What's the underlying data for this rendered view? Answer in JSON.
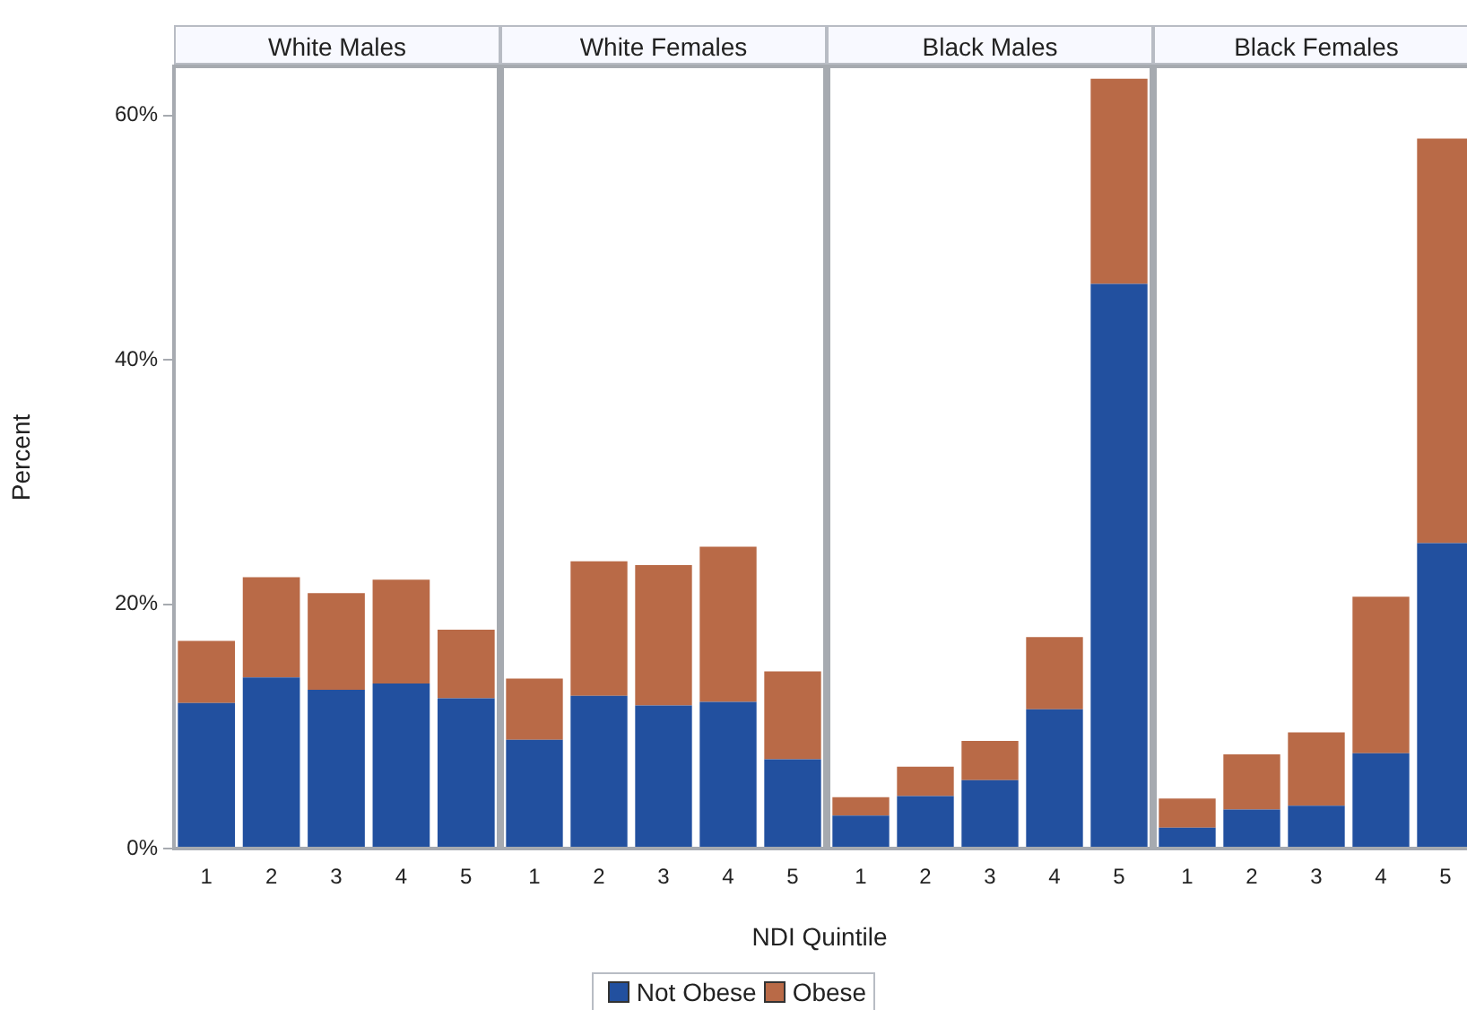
{
  "chart_data": [
    {
      "type": "bar",
      "stacked": true,
      "title": "White Males",
      "ylabel": "Percent",
      "legend": "bottom",
      "categories": [
        "1",
        "2",
        "3",
        "4",
        "5"
      ],
      "series": [
        {
          "name": "Not Obese",
          "color": "#22509f",
          "values": [
            11.9,
            14.0,
            13.0,
            13.5,
            12.3
          ]
        },
        {
          "name": "Obese",
          "color": "#b96a47",
          "values": [
            5.1,
            8.2,
            7.9,
            8.5,
            5.6
          ]
        }
      ],
      "ylim": [
        0,
        64
      ],
      "yticks": [
        {
          "value": 0,
          "label": "0%"
        },
        {
          "value": 20,
          "label": "20%"
        },
        {
          "value": 40,
          "label": "40%"
        },
        {
          "value": 60,
          "label": "60%"
        }
      ]
    },
    {
      "type": "bar",
      "stacked": true,
      "title": "White Females",
      "tick_labels": "x",
      "categories": [
        "1",
        "2",
        "3",
        "4",
        "5"
      ],
      "series": [
        {
          "name": "Not Obese",
          "color": "#22509f",
          "values": [
            8.9,
            12.5,
            11.7,
            12.0,
            7.3
          ]
        },
        {
          "name": "Obese",
          "color": "#b96a47",
          "values": [
            5.0,
            11.0,
            11.5,
            12.7,
            7.2
          ]
        }
      ],
      "ylim": [
        0,
        64
      ],
      "yticks": [
        {
          "value": 0,
          "label": null
        },
        {
          "value": 20,
          "label": null
        },
        {
          "value": 40,
          "label": null
        },
        {
          "value": 60,
          "label": null
        }
      ]
    },
    {
      "type": "bar",
      "stacked": true,
      "title": "Black Males",
      "tick_labels": "x",
      "categories": [
        "1",
        "2",
        "3",
        "4",
        "5"
      ],
      "series": [
        {
          "name": "Not Obese",
          "color": "#22509f",
          "values": [
            2.7,
            4.3,
            5.6,
            11.4,
            46.2
          ]
        },
        {
          "name": "Obese",
          "color": "#b96a47",
          "values": [
            1.5,
            2.4,
            3.2,
            5.9,
            16.8
          ]
        }
      ],
      "ylim": [
        0,
        64
      ],
      "yticks": [
        {
          "value": 0,
          "label": null
        },
        {
          "value": 20,
          "label": null
        },
        {
          "value": 40,
          "label": null
        },
        {
          "value": 60,
          "label": null
        }
      ]
    },
    {
      "type": "bar",
      "stacked": true,
      "title": "Black Females",
      "tick_labels": "x",
      "categories": [
        "1",
        "2",
        "3",
        "4",
        "5"
      ],
      "series": [
        {
          "name": "Not Obese",
          "color": "#22509f",
          "values": [
            1.7,
            3.2,
            3.5,
            7.8,
            25.0
          ]
        },
        {
          "name": "Obese",
          "color": "#b96a47",
          "values": [
            2.4,
            4.5,
            6.0,
            12.8,
            33.1
          ]
        }
      ],
      "ylim": [
        0,
        64
      ],
      "yticks": [
        {
          "value": 0,
          "label": null
        },
        {
          "value": 20,
          "label": null
        },
        {
          "value": 40,
          "label": null
        },
        {
          "value": 60,
          "label": null
        }
      ]
    },
    {
      "type": "other",
      "xlabel": "NDI Quintile"
    }
  ]
}
